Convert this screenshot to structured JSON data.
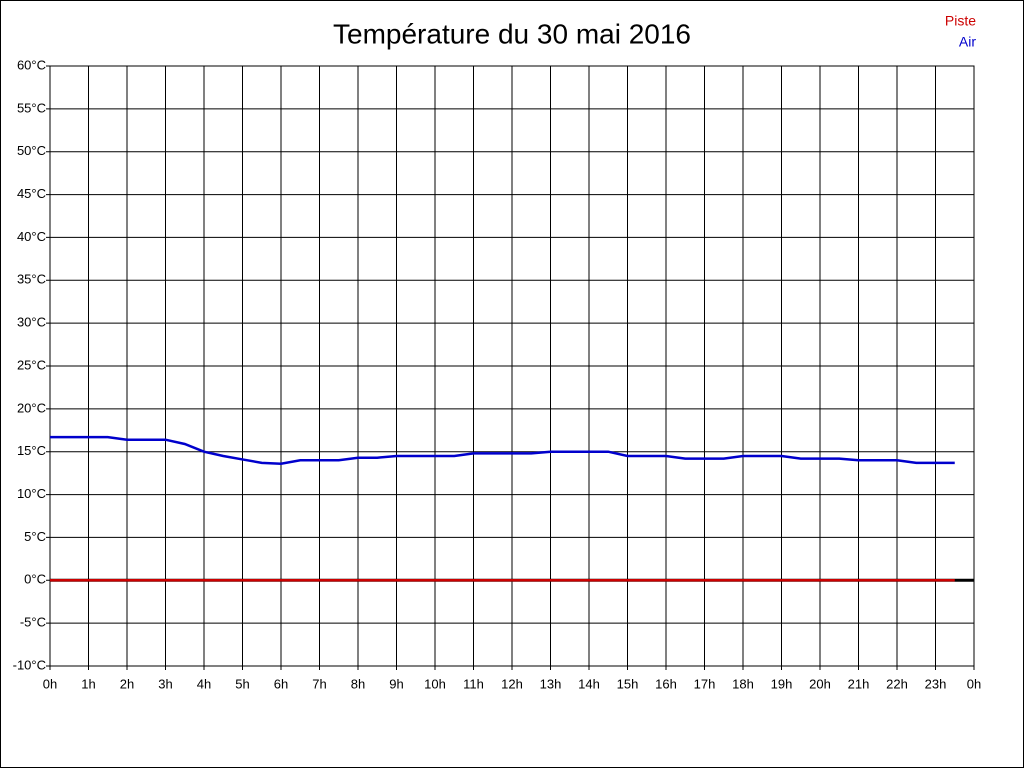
{
  "chart_data": {
    "type": "line",
    "title": "Température du 30 mai 2016",
    "x": [
      0,
      1,
      1.5,
      2,
      3,
      3.5,
      4,
      4.5,
      5,
      5.5,
      6,
      6.5,
      7,
      7.5,
      8,
      8.5,
      9,
      10,
      10.5,
      11,
      12,
      12.5,
      13,
      14,
      14.5,
      15,
      16,
      16.5,
      17,
      17.5,
      18,
      19,
      19.5,
      20,
      20.5,
      21,
      22,
      22.5,
      23,
      23.5
    ],
    "series": [
      {
        "name": "Piste",
        "color": "#cc0000",
        "values": [
          0,
          0,
          0,
          0,
          0,
          0,
          0,
          0,
          0,
          0,
          0,
          0,
          0,
          0,
          0,
          0,
          0,
          0,
          0,
          0,
          0,
          0,
          0,
          0,
          0,
          0,
          0,
          0,
          0,
          0,
          0,
          0,
          0,
          0,
          0,
          0,
          0,
          0,
          0,
          0
        ]
      },
      {
        "name": "Air",
        "color": "#0000cc",
        "values": [
          16.7,
          16.7,
          16.7,
          16.4,
          16.4,
          15.9,
          15.0,
          14.5,
          14.1,
          13.7,
          13.6,
          14.0,
          14.0,
          14.0,
          14.3,
          14.3,
          14.5,
          14.5,
          14.5,
          14.8,
          14.8,
          14.8,
          15.0,
          15.0,
          15.0,
          14.5,
          14.5,
          14.2,
          14.2,
          14.2,
          14.5,
          14.5,
          14.2,
          14.2,
          14.2,
          14.0,
          14.0,
          13.7,
          13.7,
          13.7
        ]
      }
    ],
    "xlim": [
      0,
      24
    ],
    "xticks": [
      {
        "value": 0,
        "label": "0h"
      },
      {
        "value": 1,
        "label": "1h"
      },
      {
        "value": 2,
        "label": "2h"
      },
      {
        "value": 3,
        "label": "3h"
      },
      {
        "value": 4,
        "label": "4h"
      },
      {
        "value": 5,
        "label": "5h"
      },
      {
        "value": 6,
        "label": "6h"
      },
      {
        "value": 7,
        "label": "7h"
      },
      {
        "value": 8,
        "label": "8h"
      },
      {
        "value": 9,
        "label": "9h"
      },
      {
        "value": 10,
        "label": "10h"
      },
      {
        "value": 11,
        "label": "11h"
      },
      {
        "value": 12,
        "label": "12h"
      },
      {
        "value": 13,
        "label": "13h"
      },
      {
        "value": 14,
        "label": "14h"
      },
      {
        "value": 15,
        "label": "15h"
      },
      {
        "value": 16,
        "label": "16h"
      },
      {
        "value": 17,
        "label": "17h"
      },
      {
        "value": 18,
        "label": "18h"
      },
      {
        "value": 19,
        "label": "19h"
      },
      {
        "value": 20,
        "label": "20h"
      },
      {
        "value": 21,
        "label": "21h"
      },
      {
        "value": 22,
        "label": "22h"
      },
      {
        "value": 23,
        "label": "23h"
      },
      {
        "value": 24,
        "label": "0h"
      }
    ],
    "ylim": [
      -10,
      60
    ],
    "yticks": [
      {
        "value": -10,
        "label": "-10°C"
      },
      {
        "value": -5,
        "label": "-5°C"
      },
      {
        "value": 0,
        "label": "0°C"
      },
      {
        "value": 5,
        "label": "5°C"
      },
      {
        "value": 10,
        "label": "10°C"
      },
      {
        "value": 15,
        "label": "15°C"
      },
      {
        "value": 20,
        "label": "20°C"
      },
      {
        "value": 25,
        "label": "25°C"
      },
      {
        "value": 30,
        "label": "30°C"
      },
      {
        "value": 35,
        "label": "35°C"
      },
      {
        "value": 40,
        "label": "40°C"
      },
      {
        "value": 45,
        "label": "45°C"
      },
      {
        "value": 50,
        "label": "50°C"
      },
      {
        "value": 55,
        "label": "55°C"
      },
      {
        "value": 60,
        "label": "60°C"
      }
    ],
    "grid": true,
    "legend": "top-right"
  }
}
